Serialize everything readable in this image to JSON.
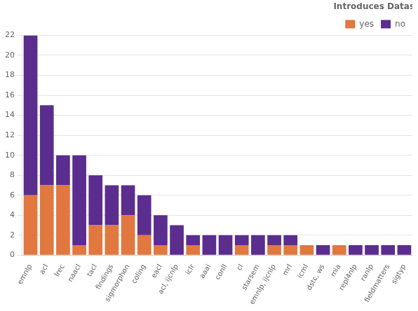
{
  "chart_data": {
    "type": "bar",
    "stacked": true,
    "categories": [
      "emnlp",
      "acl",
      "lrec",
      "naacl",
      "tacl",
      "findings",
      "sigmorphon",
      "coling",
      "eacl",
      "acl, ijcnlp",
      "iclr",
      "aaai",
      "conll",
      "cl",
      "starsem",
      "emnlp, ijcnlp",
      "mrl",
      "icml",
      "dstc, ws",
      "mia",
      "repl4nlp",
      "ranlp",
      "fieldmatters",
      "sigtyp"
    ],
    "series": [
      {
        "name": "yes",
        "color": "#E07840",
        "values": [
          6,
          7,
          7,
          1,
          3,
          3,
          4,
          2,
          1,
          0,
          1,
          0,
          0,
          1,
          0,
          1,
          1,
          1,
          0,
          1,
          0,
          0,
          0,
          0
        ]
      },
      {
        "name": "no",
        "color": "#5B2D8E",
        "values": [
          16,
          8,
          3,
          9,
          5,
          4,
          3,
          4,
          3,
          3,
          1,
          2,
          2,
          1,
          2,
          1,
          1,
          0,
          1,
          0,
          1,
          1,
          1,
          1
        ]
      }
    ],
    "legend_title": "Introduces Dataset",
    "legend": "upper right",
    "ylim": [
      0,
      22
    ],
    "yticks": [
      0,
      2,
      4,
      6,
      8,
      10,
      12,
      14,
      16,
      18,
      20,
      22
    ],
    "grid": true
  }
}
